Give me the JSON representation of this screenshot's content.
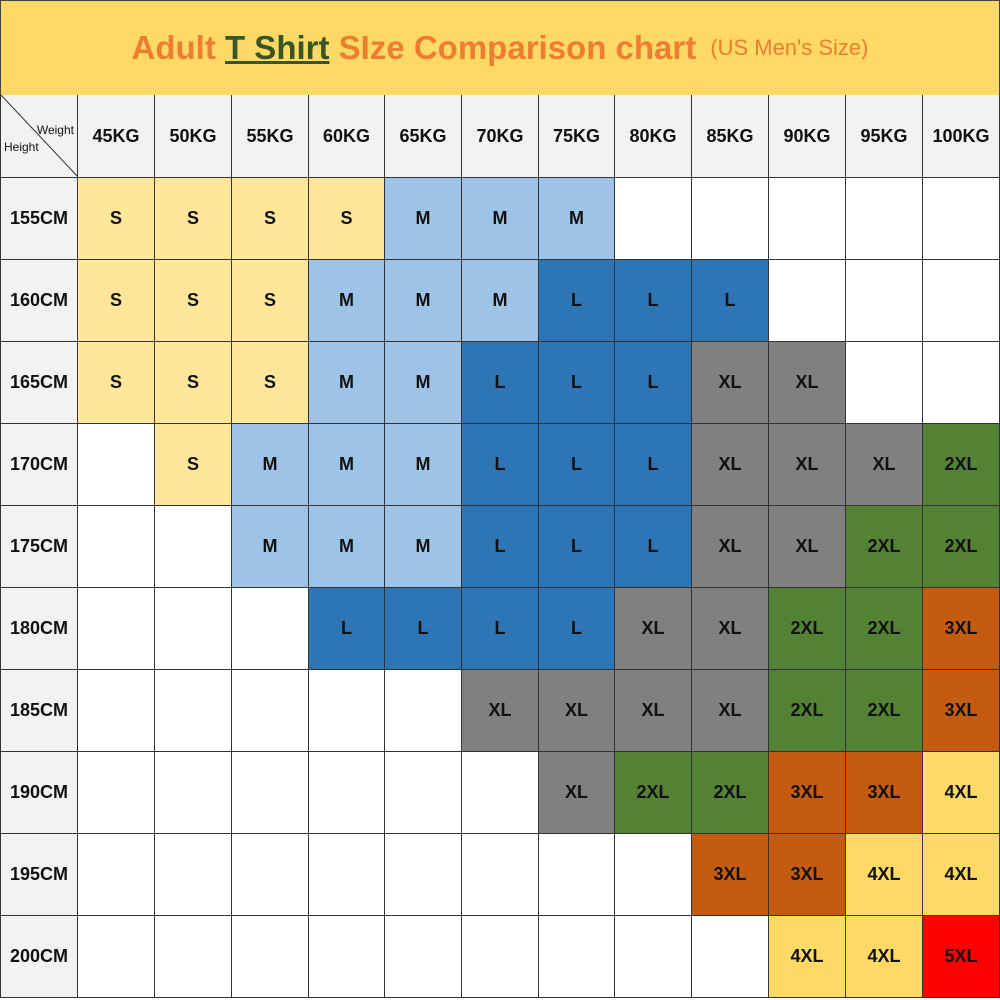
{
  "title": {
    "part1": "Adult ",
    "part2": "T Shirt",
    "part3": " SIze Comparison chart",
    "subtitle": "(US Men's Size)"
  },
  "chart_data": {
    "type": "table",
    "corner": {
      "column_label": "Weight",
      "row_label": "Height"
    },
    "columns": [
      "45KG",
      "50KG",
      "55KG",
      "60KG",
      "65KG",
      "70KG",
      "75KG",
      "80KG",
      "85KG",
      "90KG",
      "95KG",
      "100KG"
    ],
    "rows": [
      {
        "label": "155CM",
        "cells": [
          "S",
          "S",
          "S",
          "S",
          "M",
          "M",
          "M",
          "",
          "",
          "",
          "",
          ""
        ]
      },
      {
        "label": "160CM",
        "cells": [
          "S",
          "S",
          "S",
          "M",
          "M",
          "M",
          "L",
          "L",
          "L",
          "",
          "",
          ""
        ]
      },
      {
        "label": "165CM",
        "cells": [
          "S",
          "S",
          "S",
          "M",
          "M",
          "L",
          "L",
          "L",
          "XL",
          "XL",
          "",
          ""
        ]
      },
      {
        "label": "170CM",
        "cells": [
          "",
          "S",
          "M",
          "M",
          "M",
          "L",
          "L",
          "L",
          "XL",
          "XL",
          "XL",
          "2XL"
        ]
      },
      {
        "label": "175CM",
        "cells": [
          "",
          "",
          "M",
          "M",
          "M",
          "L",
          "L",
          "L",
          "XL",
          "XL",
          "2XL",
          "2XL"
        ]
      },
      {
        "label": "180CM",
        "cells": [
          "",
          "",
          "",
          "L",
          "L",
          "L",
          "L",
          "XL",
          "XL",
          "2XL",
          "2XL",
          "3XL"
        ]
      },
      {
        "label": "185CM",
        "cells": [
          "",
          "",
          "",
          "",
          "",
          "XL",
          "XL",
          "XL",
          "XL",
          "2XL",
          "2XL",
          "3XL"
        ]
      },
      {
        "label": "190CM",
        "cells": [
          "",
          "",
          "",
          "",
          "",
          "",
          "XL",
          "2XL",
          "2XL",
          "3XL",
          "3XL",
          "4XL"
        ]
      },
      {
        "label": "195CM",
        "cells": [
          "",
          "",
          "",
          "",
          "",
          "",
          "",
          "",
          "3XL",
          "3XL",
          "4XL",
          "4XL"
        ]
      },
      {
        "label": "200CM",
        "cells": [
          "",
          "",
          "",
          "",
          "",
          "",
          "",
          "",
          "",
          "4XL",
          "4XL",
          "5XL"
        ]
      }
    ],
    "size_colors": {
      "S": "#FFE699",
      "M": "#9DC3E6",
      "L": "#2E75B6",
      "XL": "#808080",
      "2XL": "#548235",
      "3XL": "#C55A11",
      "4XL": "#FFD966",
      "5XL": "#FF0000"
    }
  }
}
